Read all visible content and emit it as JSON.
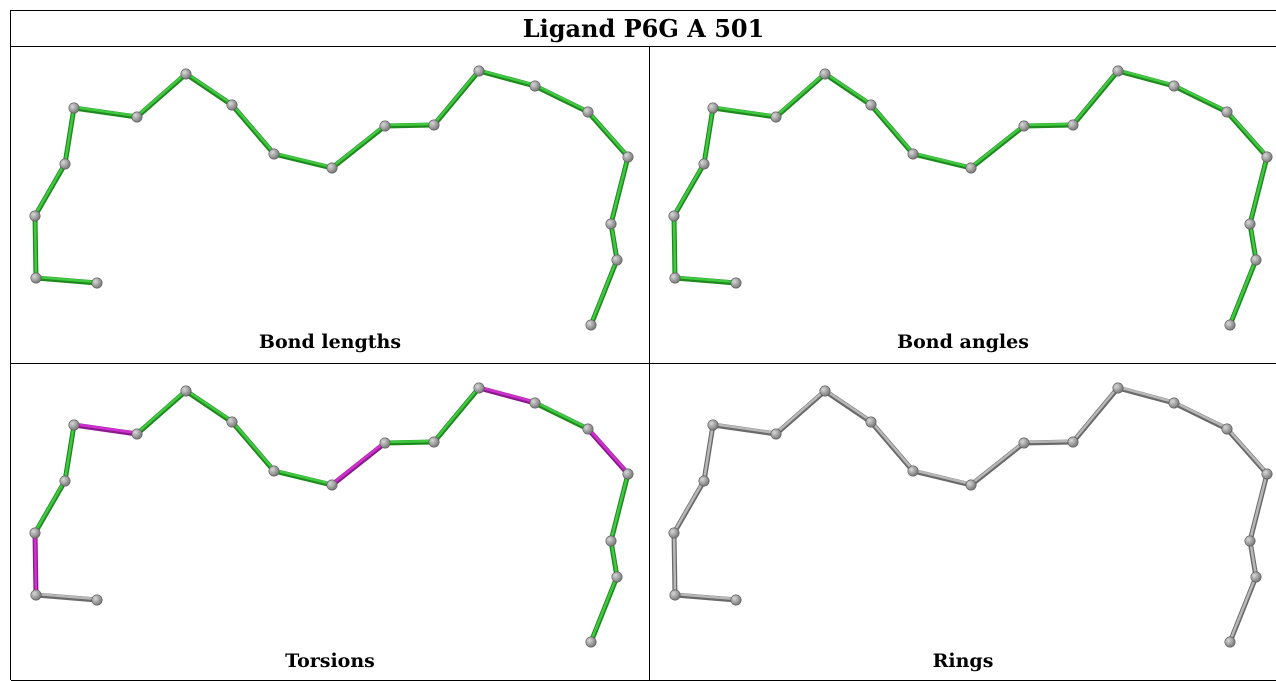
{
  "title": "Ligand P6G A 501",
  "colors": {
    "ok": "#40c840",
    "ok_dark": "#1e8a1e",
    "outlier": "#d030d0",
    "outlier_dark": "#8a1a8a",
    "neutral": "#b8b8b8",
    "neutral_dark": "#6a6a6a",
    "atom": "#7a7a7a",
    "atom_highlight": "#d8d8d8"
  },
  "panels": [
    {
      "caption": "Bond lengths",
      "bond_colors": [
        "ok",
        "ok",
        "ok",
        "ok",
        "ok",
        "ok",
        "ok",
        "ok",
        "ok",
        "ok",
        "ok",
        "ok",
        "ok",
        "ok",
        "ok",
        "ok",
        "ok",
        "ok",
        "ok",
        "ok"
      ]
    },
    {
      "caption": "Bond angles",
      "bond_colors": [
        "ok",
        "ok",
        "ok",
        "ok",
        "ok",
        "ok",
        "ok",
        "ok",
        "ok",
        "ok",
        "ok",
        "ok",
        "ok",
        "ok",
        "ok",
        "ok",
        "ok",
        "ok",
        "ok",
        "ok"
      ]
    },
    {
      "caption": "Torsions",
      "bond_colors": [
        "neutral",
        "outlier",
        "ok",
        "ok",
        "outlier",
        "ok",
        "ok",
        "ok",
        "ok",
        "outlier",
        "ok",
        "ok",
        "outlier",
        "ok",
        "outlier",
        "ok",
        "ok",
        "ok",
        "neutral",
        "neutral"
      ]
    },
    {
      "caption": "Rings",
      "bond_colors": [
        "neutral",
        "neutral",
        "neutral",
        "neutral",
        "neutral",
        "neutral",
        "neutral",
        "neutral",
        "neutral",
        "neutral",
        "neutral",
        "neutral",
        "neutral",
        "neutral",
        "neutral",
        "neutral",
        "neutral",
        "neutral",
        "neutral",
        "neutral"
      ]
    }
  ]
}
